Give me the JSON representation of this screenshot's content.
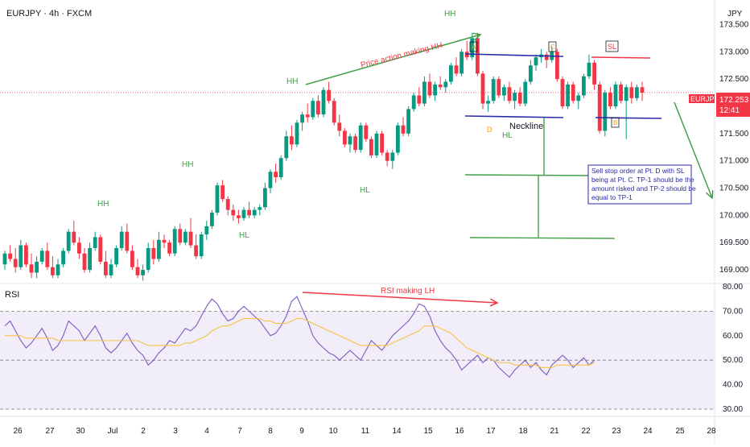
{
  "header": {
    "title": "EURJPY · 4h · FXCM",
    "currency": "JPY"
  },
  "price_tag": {
    "symbol": "EURJPY",
    "price": "172.253",
    "countdown": "12:41"
  },
  "rsi_pane": {
    "label": "RSI"
  },
  "colors": {
    "up": "#089981",
    "down": "#f23645",
    "rsi_line": "#7e57c2",
    "rsi_ma": "#f5c244",
    "band_fill": "#ede7f6",
    "annot_green": "#43a047",
    "annot_red": "#f23645",
    "annot_blue": "#2a2aa8"
  },
  "annotations": {
    "hh_labels": [
      "HH",
      "HH",
      "HH",
      "HH"
    ],
    "hl_labels": [
      "HL",
      "HL",
      "HL"
    ],
    "pa_text": "Price action making HH",
    "rsi_text": "RSI making LH",
    "neckline": "Neckline",
    "pt_a": "A",
    "pt_b": "B",
    "pt_c": "C",
    "pt_d": "D",
    "sl": "SL",
    "note_lines": [
      "Sell stop order at Pt. D with SL",
      "being at Pt. C. TP-1 should be the",
      "amount risked and TP-2 should be",
      "equal to TP-1"
    ]
  },
  "chart_data": [
    {
      "type": "candlestick",
      "symbol": "EURJPY",
      "timeframe": "4h",
      "yaxis": {
        "ticks": [
          "173.500",
          "173.000",
          "172.500",
          "172.000",
          "171.500",
          "171.000",
          "170.500",
          "170.000",
          "169.500",
          "169.000"
        ],
        "range": [
          168.75,
          173.95
        ]
      },
      "xaxis": {
        "ticks": [
          "26",
          "27",
          "30",
          "Jul",
          "2",
          "3",
          "4",
          "7",
          "8",
          "9",
          "10",
          "11",
          "14",
          "15",
          "16",
          "17",
          "18",
          "21",
          "22",
          "23",
          "24",
          "25",
          "28"
        ]
      },
      "last_price": 172.253,
      "ohlc": [
        [
          169.1,
          169.35,
          169.0,
          169.3
        ],
        [
          169.3,
          169.45,
          169.15,
          169.2
        ],
        [
          169.2,
          169.4,
          168.95,
          169.05
        ],
        [
          169.05,
          169.55,
          169.0,
          169.45
        ],
        [
          169.45,
          169.5,
          169.05,
          169.1
        ],
        [
          169.1,
          169.3,
          168.85,
          168.95
        ],
        [
          168.95,
          169.25,
          168.85,
          169.15
        ],
        [
          169.15,
          169.4,
          169.1,
          169.35
        ],
        [
          169.35,
          169.5,
          169.0,
          169.05
        ],
        [
          169.05,
          169.25,
          168.85,
          168.9
        ],
        [
          168.9,
          169.2,
          168.85,
          169.1
        ],
        [
          169.1,
          169.4,
          169.05,
          169.35
        ],
        [
          169.35,
          169.75,
          169.3,
          169.7
        ],
        [
          169.7,
          169.9,
          169.45,
          169.5
        ],
        [
          169.5,
          169.6,
          169.2,
          169.3
        ],
        [
          169.3,
          169.4,
          168.95,
          169.0
        ],
        [
          169.0,
          169.5,
          168.95,
          169.4
        ],
        [
          169.4,
          169.7,
          169.35,
          169.6
        ],
        [
          169.6,
          169.65,
          169.1,
          169.15
        ],
        [
          169.15,
          169.35,
          168.85,
          168.9
        ],
        [
          168.9,
          169.2,
          168.85,
          169.1
        ],
        [
          169.1,
          169.45,
          169.05,
          169.4
        ],
        [
          169.4,
          169.8,
          169.35,
          169.7
        ],
        [
          169.7,
          169.85,
          169.3,
          169.35
        ],
        [
          169.35,
          169.45,
          169.0,
          169.05
        ],
        [
          169.05,
          169.2,
          168.85,
          168.9
        ],
        [
          168.9,
          169.1,
          168.8,
          169.0
        ],
        [
          169.0,
          169.5,
          168.95,
          169.4
        ],
        [
          169.4,
          169.55,
          169.1,
          169.2
        ],
        [
          169.2,
          169.7,
          169.15,
          169.55
        ],
        [
          169.55,
          169.65,
          169.4,
          169.5
        ],
        [
          169.5,
          169.55,
          169.25,
          169.3
        ],
        [
          169.3,
          169.8,
          169.25,
          169.75
        ],
        [
          169.75,
          169.85,
          169.45,
          169.5
        ],
        [
          169.5,
          169.75,
          169.45,
          169.7
        ],
        [
          169.7,
          169.95,
          169.4,
          169.45
        ],
        [
          169.45,
          169.65,
          169.2,
          169.25
        ],
        [
          169.25,
          169.7,
          169.2,
          169.65
        ],
        [
          169.65,
          169.9,
          169.55,
          169.8
        ],
        [
          169.8,
          170.1,
          169.75,
          170.05
        ],
        [
          170.05,
          170.6,
          170.0,
          170.55
        ],
        [
          170.55,
          170.65,
          170.25,
          170.3
        ],
        [
          170.3,
          170.35,
          170.0,
          170.1
        ],
        [
          170.1,
          170.2,
          169.9,
          170.0
        ],
        [
          170.0,
          170.1,
          169.85,
          169.95
        ],
        [
          169.95,
          170.15,
          169.9,
          170.1
        ],
        [
          170.1,
          170.25,
          169.95,
          170.0
        ],
        [
          170.0,
          170.15,
          169.95,
          170.1
        ],
        [
          170.1,
          170.2,
          170.0,
          170.15
        ],
        [
          170.15,
          170.6,
          170.1,
          170.5
        ],
        [
          170.5,
          170.85,
          170.4,
          170.8
        ],
        [
          170.8,
          170.95,
          170.6,
          170.7
        ],
        [
          170.7,
          171.1,
          170.65,
          171.05
        ],
        [
          171.05,
          171.55,
          171.0,
          171.45
        ],
        [
          171.45,
          171.65,
          171.2,
          171.3
        ],
        [
          171.3,
          171.75,
          171.25,
          171.7
        ],
        [
          171.7,
          171.9,
          171.55,
          171.85
        ],
        [
          171.85,
          172.05,
          171.7,
          171.8
        ],
        [
          171.8,
          172.15,
          171.75,
          172.1
        ],
        [
          172.1,
          172.2,
          171.8,
          171.85
        ],
        [
          171.85,
          172.35,
          171.8,
          172.3
        ],
        [
          172.3,
          172.45,
          172.05,
          172.1
        ],
        [
          172.1,
          172.15,
          171.65,
          171.7
        ],
        [
          171.7,
          171.85,
          171.45,
          171.55
        ],
        [
          171.55,
          171.6,
          171.25,
          171.3
        ],
        [
          171.3,
          171.5,
          171.15,
          171.45
        ],
        [
          171.45,
          171.5,
          171.15,
          171.2
        ],
        [
          171.2,
          171.7,
          171.15,
          171.65
        ],
        [
          171.65,
          171.7,
          171.35,
          171.4
        ],
        [
          171.4,
          171.45,
          171.05,
          171.1
        ],
        [
          171.1,
          171.55,
          171.05,
          171.5
        ],
        [
          171.5,
          171.55,
          171.1,
          171.15
        ],
        [
          171.15,
          171.2,
          170.9,
          171.0
        ],
        [
          171.0,
          171.2,
          170.85,
          171.15
        ],
        [
          171.15,
          171.7,
          171.1,
          171.65
        ],
        [
          171.65,
          171.8,
          171.45,
          171.5
        ],
        [
          171.5,
          172.0,
          171.45,
          171.95
        ],
        [
          171.95,
          172.25,
          171.9,
          172.2
        ],
        [
          172.2,
          172.35,
          172.0,
          172.05
        ],
        [
          172.05,
          172.55,
          172.0,
          172.45
        ],
        [
          172.45,
          172.6,
          172.15,
          172.2
        ],
        [
          172.2,
          172.45,
          172.1,
          172.4
        ],
        [
          172.4,
          172.55,
          172.3,
          172.35
        ],
        [
          172.35,
          172.5,
          172.25,
          172.45
        ],
        [
          172.45,
          172.8,
          172.4,
          172.75
        ],
        [
          172.75,
          172.9,
          172.55,
          172.6
        ],
        [
          172.6,
          173.05,
          172.55,
          173.0
        ],
        [
          173.0,
          173.2,
          172.85,
          172.9
        ],
        [
          172.9,
          173.35,
          172.85,
          173.25
        ],
        [
          173.25,
          173.35,
          172.55,
          172.6
        ],
        [
          172.6,
          172.65,
          171.95,
          172.05
        ],
        [
          172.05,
          172.2,
          171.9,
          172.1
        ],
        [
          172.1,
          172.55,
          172.05,
          172.5
        ],
        [
          172.5,
          172.55,
          172.15,
          172.2
        ],
        [
          172.2,
          172.4,
          172.1,
          172.35
        ],
        [
          172.35,
          172.45,
          172.05,
          172.1
        ],
        [
          172.1,
          172.3,
          171.95,
          172.25
        ],
        [
          172.25,
          172.35,
          172.0,
          172.05
        ],
        [
          172.05,
          172.5,
          172.0,
          172.45
        ],
        [
          172.45,
          172.85,
          172.4,
          172.75
        ],
        [
          172.75,
          172.95,
          172.65,
          172.9
        ],
        [
          172.9,
          173.05,
          172.8,
          172.95
        ],
        [
          172.95,
          173.0,
          172.7,
          172.85
        ],
        [
          172.85,
          173.1,
          172.8,
          173.0
        ],
        [
          173.0,
          173.05,
          172.45,
          172.5
        ],
        [
          172.5,
          172.55,
          171.95,
          172.0
        ],
        [
          172.0,
          172.45,
          171.95,
          172.4
        ],
        [
          172.4,
          172.45,
          172.05,
          172.1
        ],
        [
          172.1,
          172.25,
          171.95,
          172.2
        ],
        [
          172.2,
          172.6,
          172.15,
          172.55
        ],
        [
          172.55,
          172.95,
          172.5,
          172.8
        ],
        [
          172.8,
          172.85,
          172.3,
          172.4
        ],
        [
          172.4,
          172.45,
          171.5,
          171.55
        ],
        [
          171.55,
          172.3,
          171.45,
          172.25
        ],
        [
          172.25,
          172.35,
          171.95,
          172.0
        ],
        [
          172.0,
          172.45,
          171.95,
          172.4
        ],
        [
          172.4,
          172.45,
          172.05,
          172.1
        ],
        [
          172.1,
          172.4,
          171.4,
          172.35
        ],
        [
          172.35,
          172.45,
          172.05,
          172.15
        ],
        [
          172.15,
          172.4,
          172.1,
          172.35
        ],
        [
          172.35,
          172.45,
          172.1,
          172.25
        ]
      ]
    },
    {
      "type": "line",
      "name": "RSI",
      "yaxis": {
        "ticks": [
          "80.00",
          "70.00",
          "60.00",
          "50.00",
          "40.00",
          "30.00"
        ],
        "range": [
          30,
          80
        ],
        "bands": [
          30,
          70
        ],
        "midline": 50
      },
      "rsi": [
        64,
        66,
        62,
        58,
        55,
        57,
        60,
        63,
        59,
        54,
        56,
        60,
        66,
        64,
        62,
        58,
        61,
        64,
        60,
        55,
        53,
        55,
        58,
        61,
        57,
        54,
        52,
        48,
        50,
        53,
        55,
        58,
        57,
        60,
        63,
        62,
        64,
        68,
        72,
        75,
        73,
        69,
        66,
        67,
        70,
        72,
        70,
        68,
        66,
        63,
        60,
        61,
        64,
        68,
        74,
        76,
        71,
        66,
        60,
        57,
        55,
        53,
        52,
        50,
        52,
        54,
        52,
        50,
        54,
        58,
        56,
        54,
        57,
        60,
        62,
        64,
        66,
        69,
        73,
        72,
        68,
        62,
        58,
        55,
        53,
        50,
        46,
        48,
        50,
        52,
        49,
        51,
        50,
        47,
        45,
        43,
        46,
        48,
        50,
        47,
        49,
        46,
        44,
        48,
        50,
        52,
        50,
        47,
        49,
        51,
        48,
        50
      ],
      "rsi_ma": [
        60,
        60,
        60,
        60,
        59,
        59,
        59,
        59,
        59,
        59,
        58,
        58,
        58,
        58,
        58,
        58,
        58,
        58,
        58,
        58,
        58,
        58,
        58,
        58,
        58,
        58,
        57,
        56,
        56,
        56,
        56,
        56,
        56,
        56,
        57,
        57,
        58,
        59,
        60,
        62,
        63,
        64,
        64,
        65,
        66,
        67,
        67,
        67,
        67,
        66,
        66,
        65,
        65,
        65,
        66,
        67,
        67,
        66,
        65,
        64,
        63,
        62,
        61,
        60,
        59,
        58,
        57,
        56,
        56,
        56,
        56,
        56,
        56,
        57,
        58,
        59,
        60,
        61,
        62,
        64,
        64,
        64,
        63,
        62,
        61,
        59,
        57,
        55,
        54,
        53,
        52,
        51,
        50,
        49,
        49,
        49,
        48,
        48,
        48,
        48,
        48,
        47,
        47,
        47,
        48,
        48,
        48,
        48,
        48,
        48,
        48,
        49
      ]
    }
  ]
}
